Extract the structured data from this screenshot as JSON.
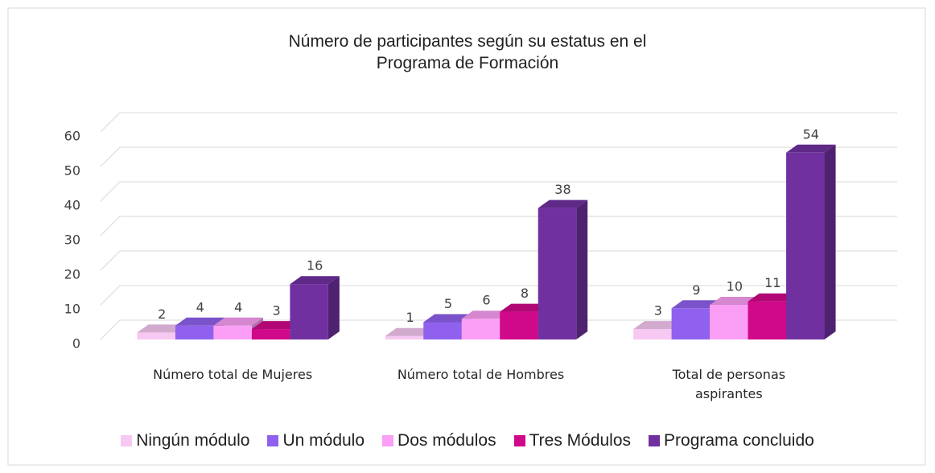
{
  "chart_data": {
    "type": "bar3d",
    "title": [
      "Número de participantes según su estatus en el",
      "Programa de Formación"
    ],
    "categories": [
      "Número total de Mujeres",
      "Número total de Hombres",
      "Total de personas aspirantes"
    ],
    "series": [
      {
        "name": "Ningún módulo",
        "color": "#f7c8f2",
        "values": [
          2,
          1,
          3
        ]
      },
      {
        "name": "Un módulo",
        "color": "#9060ee",
        "values": [
          4,
          5,
          9
        ]
      },
      {
        "name": "Dos módulos",
        "color": "#fa9ff5",
        "values": [
          4,
          6,
          10
        ]
      },
      {
        "name": "Tres Módulos",
        "color": "#d0088a",
        "values": [
          3,
          8,
          11
        ]
      },
      {
        "name": "Programa concluido",
        "color": "#7030a0",
        "values": [
          16,
          38,
          54
        ]
      }
    ],
    "ylim": [
      0,
      60
    ],
    "yticks": [
      0,
      10,
      20,
      30,
      40,
      50,
      60
    ],
    "grid": true,
    "legend": "bottom"
  }
}
